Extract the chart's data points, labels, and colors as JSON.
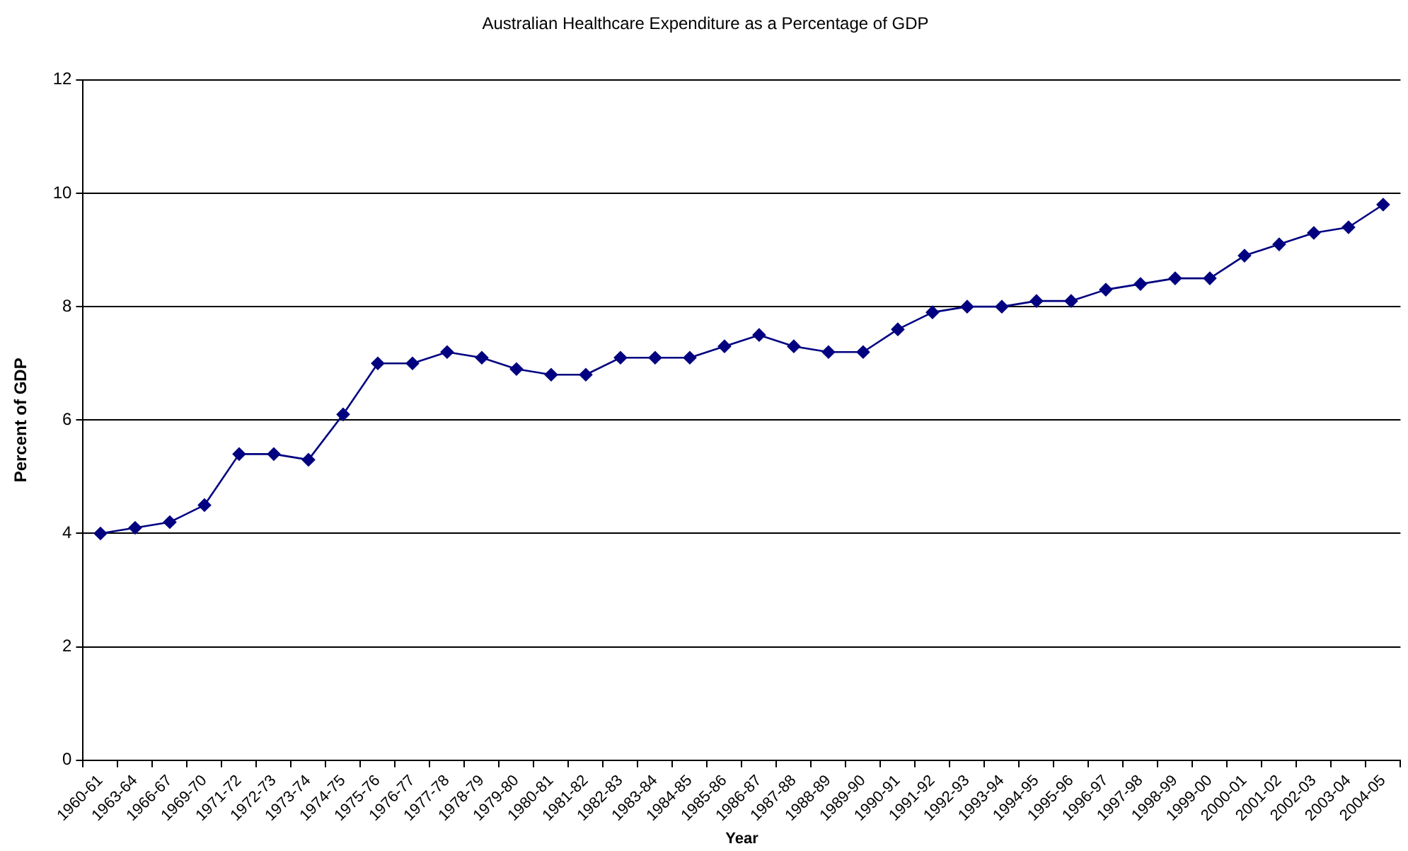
{
  "chart_data": {
    "type": "line",
    "title": "Australian Healthcare Expenditure as a Percentage of GDP",
    "xlabel": "Year",
    "ylabel": "Percent of GDP",
    "categories": [
      "1960-61",
      "1963-64",
      "1966-67",
      "1969-70",
      "1971-72",
      "1972-73",
      "1973-74",
      "1974-75",
      "1975-76",
      "1976-77",
      "1977-78",
      "1978-79",
      "1979-80",
      "1980-81",
      "1981-82",
      "1982-83",
      "1983-84",
      "1984-85",
      "1985-86",
      "1986-87",
      "1987-88",
      "1988-89",
      "1989-90",
      "1990-91",
      "1991-92",
      "1992-93",
      "1993-94",
      "1994-95",
      "1995-96",
      "1996-97",
      "1997-98",
      "1998-99",
      "1999-00",
      "2000-01",
      "2001-02",
      "2002-03",
      "2003-04",
      "2004-05"
    ],
    "series": [
      {
        "color": "#000080",
        "values": [
          4.0,
          4.1,
          4.2,
          4.5,
          5.4,
          5.4,
          5.3,
          6.1,
          7.0,
          7.0,
          7.2,
          7.1,
          6.9,
          6.8,
          6.8,
          7.1,
          7.1,
          7.1,
          7.3,
          7.5,
          7.3,
          7.2,
          7.2,
          7.6,
          7.9,
          8.0,
          8.0,
          8.1,
          8.1,
          8.3,
          8.4,
          8.5,
          8.5,
          8.9,
          9.1,
          9.3,
          9.4,
          9.8
        ]
      }
    ],
    "ylim": [
      0,
      12
    ],
    "yticks": [
      0,
      2,
      4,
      6,
      8,
      10,
      12
    ],
    "grid": "y",
    "legend": false,
    "marker": "diamond",
    "line_style": "solid"
  }
}
